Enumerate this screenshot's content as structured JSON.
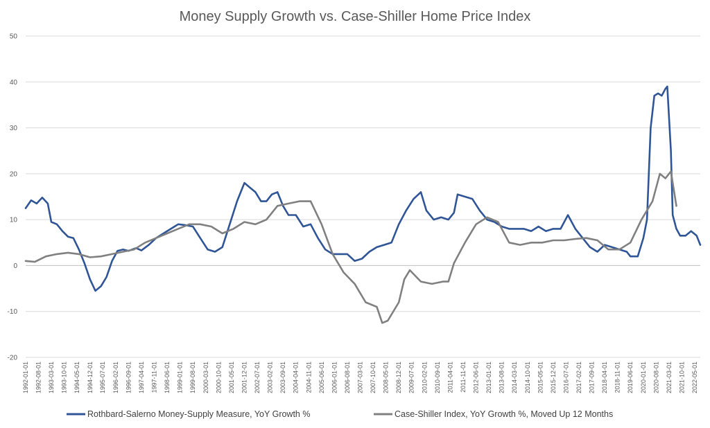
{
  "chart_data": {
    "type": "line",
    "title": "Money Supply Growth vs. Case-Shiller Home Price Index",
    "xlabel": "",
    "ylabel": "",
    "ylim": [
      -20,
      50
    ],
    "yticks": [
      50,
      40,
      30,
      20,
      10,
      0,
      -10,
      -20
    ],
    "grid": true,
    "legend_position": "bottom",
    "x_start": "1992-01-01",
    "x_end": "2022-08-01",
    "x_tick_labels": [
      "1992-01-01",
      "1992-08-01",
      "1993-03-01",
      "1993-10-01",
      "1994-05-01",
      "1994-12-01",
      "1995-07-01",
      "1996-02-01",
      "1996-09-01",
      "1997-04-01",
      "1997-11-01",
      "1998-06-01",
      "1999-01-01",
      "1999-08-01",
      "2000-03-01",
      "2000-10-01",
      "2001-05-01",
      "2001-12-01",
      "2002-07-01",
      "2003-02-01",
      "2003-09-01",
      "2004-04-01",
      "2004-11-01",
      "2005-06-01",
      "2006-01-01",
      "2006-08-01",
      "2007-03-01",
      "2007-10-01",
      "2008-05-01",
      "2008-12-01",
      "2009-07-01",
      "2010-02-01",
      "2010-09-01",
      "2011-04-01",
      "2011-11-01",
      "2012-06-01",
      "2013-01-01",
      "2013-08-01",
      "2014-03-01",
      "2014-10-01",
      "2015-05-01",
      "2015-12-01",
      "2016-07-01",
      "2017-02-01",
      "2017-09-01",
      "2018-04-01",
      "2018-11-01",
      "2019-06-01",
      "2020-01-01",
      "2020-08-01",
      "2021-03-01",
      "2021-10-01",
      "2022-05-01"
    ],
    "series": [
      {
        "name": "Rothbard-Salerno Money-Supply Measure, YoY Growth %",
        "color": "#2f5597",
        "points": [
          [
            "1992-01-01",
            12.5
          ],
          [
            "1992-04-01",
            14.2
          ],
          [
            "1992-07-01",
            13.5
          ],
          [
            "1992-10-01",
            14.8
          ],
          [
            "1993-01-01",
            13.5
          ],
          [
            "1993-03-01",
            9.5
          ],
          [
            "1993-06-01",
            9.0
          ],
          [
            "1993-09-01",
            7.5
          ],
          [
            "1993-12-01",
            6.3
          ],
          [
            "1994-03-01",
            6.0
          ],
          [
            "1994-06-01",
            3.5
          ],
          [
            "1994-09-01",
            0.5
          ],
          [
            "1994-12-01",
            -3.0
          ],
          [
            "1995-03-01",
            -5.5
          ],
          [
            "1995-06-01",
            -4.5
          ],
          [
            "1995-09-01",
            -2.5
          ],
          [
            "1995-12-01",
            1.0
          ],
          [
            "1996-03-01",
            3.2
          ],
          [
            "1996-06-01",
            3.5
          ],
          [
            "1996-09-01",
            3.2
          ],
          [
            "1997-01-01",
            3.8
          ],
          [
            "1997-04-01",
            3.3
          ],
          [
            "1997-08-01",
            4.5
          ],
          [
            "1997-12-01",
            6.0
          ],
          [
            "1998-04-01",
            7.0
          ],
          [
            "1998-08-01",
            8.0
          ],
          [
            "1998-12-01",
            9.0
          ],
          [
            "1999-04-01",
            8.8
          ],
          [
            "1999-08-01",
            8.5
          ],
          [
            "1999-12-01",
            6.0
          ],
          [
            "2000-04-01",
            3.5
          ],
          [
            "2000-08-01",
            3.0
          ],
          [
            "2000-12-01",
            4.0
          ],
          [
            "2001-04-01",
            9.0
          ],
          [
            "2001-08-01",
            14.0
          ],
          [
            "2001-12-01",
            18.0
          ],
          [
            "2002-03-01",
            17.0
          ],
          [
            "2002-06-01",
            16.0
          ],
          [
            "2002-09-01",
            14.0
          ],
          [
            "2002-12-01",
            14.0
          ],
          [
            "2003-03-01",
            15.5
          ],
          [
            "2003-06-01",
            16.0
          ],
          [
            "2003-09-01",
            13.0
          ],
          [
            "2003-12-01",
            11.0
          ],
          [
            "2004-04-01",
            11.0
          ],
          [
            "2004-08-01",
            8.5
          ],
          [
            "2004-12-01",
            9.0
          ],
          [
            "2005-04-01",
            6.0
          ],
          [
            "2005-08-01",
            3.5
          ],
          [
            "2005-12-01",
            2.5
          ],
          [
            "2006-04-01",
            2.5
          ],
          [
            "2006-08-01",
            2.5
          ],
          [
            "2006-12-01",
            1.0
          ],
          [
            "2007-04-01",
            1.5
          ],
          [
            "2007-08-01",
            3.0
          ],
          [
            "2007-12-01",
            4.0
          ],
          [
            "2008-04-01",
            4.5
          ],
          [
            "2008-08-01",
            5.0
          ],
          [
            "2008-12-01",
            9.0
          ],
          [
            "2009-04-01",
            12.0
          ],
          [
            "2009-08-01",
            14.5
          ],
          [
            "2009-12-01",
            16.0
          ],
          [
            "2010-03-01",
            12.0
          ],
          [
            "2010-07-01",
            10.0
          ],
          [
            "2010-11-01",
            10.5
          ],
          [
            "2011-03-01",
            10.0
          ],
          [
            "2011-06-01",
            11.5
          ],
          [
            "2011-08-01",
            15.5
          ],
          [
            "2011-12-01",
            15.0
          ],
          [
            "2012-04-01",
            14.5
          ],
          [
            "2012-08-01",
            12.0
          ],
          [
            "2012-12-01",
            10.0
          ],
          [
            "2013-04-01",
            9.5
          ],
          [
            "2013-08-01",
            8.5
          ],
          [
            "2013-12-01",
            8.0
          ],
          [
            "2014-04-01",
            8.0
          ],
          [
            "2014-08-01",
            8.0
          ],
          [
            "2014-12-01",
            7.5
          ],
          [
            "2015-04-01",
            8.5
          ],
          [
            "2015-08-01",
            7.5
          ],
          [
            "2015-12-01",
            8.0
          ],
          [
            "2016-04-01",
            8.0
          ],
          [
            "2016-08-01",
            11.0
          ],
          [
            "2016-12-01",
            8.0
          ],
          [
            "2017-04-01",
            6.0
          ],
          [
            "2017-08-01",
            4.0
          ],
          [
            "2017-12-01",
            3.0
          ],
          [
            "2018-04-01",
            4.5
          ],
          [
            "2018-08-01",
            4.0
          ],
          [
            "2018-12-01",
            3.5
          ],
          [
            "2019-04-01",
            3.0
          ],
          [
            "2019-06-01",
            2.0
          ],
          [
            "2019-10-01",
            2.0
          ],
          [
            "2020-01-01",
            6.0
          ],
          [
            "2020-03-01",
            10.0
          ],
          [
            "2020-05-01",
            30.0
          ],
          [
            "2020-07-01",
            37.0
          ],
          [
            "2020-09-01",
            37.5
          ],
          [
            "2020-11-01",
            37.0
          ],
          [
            "2021-01-01",
            38.5
          ],
          [
            "2021-02-01",
            39.0
          ],
          [
            "2021-04-01",
            25.0
          ],
          [
            "2021-05-01",
            11.0
          ],
          [
            "2021-07-01",
            8.0
          ],
          [
            "2021-09-01",
            6.5
          ],
          [
            "2021-12-01",
            6.5
          ],
          [
            "2022-03-01",
            7.5
          ],
          [
            "2022-06-01",
            6.5
          ],
          [
            "2022-08-01",
            4.5
          ]
        ]
      },
      {
        "name": "Case-Shiller Index, YoY Growth %, Moved Up 12 Months",
        "color": "#808080",
        "points": [
          [
            "1992-01-01",
            1.0
          ],
          [
            "1992-06-01",
            0.8
          ],
          [
            "1992-12-01",
            2.0
          ],
          [
            "1993-06-01",
            2.5
          ],
          [
            "1993-12-01",
            2.8
          ],
          [
            "1994-06-01",
            2.5
          ],
          [
            "1994-12-01",
            1.8
          ],
          [
            "1995-06-01",
            2.0
          ],
          [
            "1995-12-01",
            2.5
          ],
          [
            "1996-06-01",
            3.0
          ],
          [
            "1996-12-01",
            3.5
          ],
          [
            "1997-06-01",
            5.0
          ],
          [
            "1997-12-01",
            6.0
          ],
          [
            "1998-06-01",
            7.0
          ],
          [
            "1998-12-01",
            8.0
          ],
          [
            "1999-06-01",
            9.0
          ],
          [
            "1999-12-01",
            9.0
          ],
          [
            "2000-06-01",
            8.5
          ],
          [
            "2000-12-01",
            7.0
          ],
          [
            "2001-06-01",
            8.0
          ],
          [
            "2001-12-01",
            9.5
          ],
          [
            "2002-06-01",
            9.0
          ],
          [
            "2002-12-01",
            10.0
          ],
          [
            "2003-06-01",
            13.0
          ],
          [
            "2003-12-01",
            13.5
          ],
          [
            "2004-06-01",
            14.0
          ],
          [
            "2004-12-01",
            14.0
          ],
          [
            "2005-06-01",
            9.0
          ],
          [
            "2005-12-01",
            2.5
          ],
          [
            "2006-06-01",
            -1.5
          ],
          [
            "2006-12-01",
            -4.0
          ],
          [
            "2007-06-01",
            -8.0
          ],
          [
            "2007-12-01",
            -9.0
          ],
          [
            "2008-03-01",
            -12.5
          ],
          [
            "2008-06-01",
            -12.0
          ],
          [
            "2008-12-01",
            -8.0
          ],
          [
            "2009-03-01",
            -3.0
          ],
          [
            "2009-06-01",
            -1.0
          ],
          [
            "2009-12-01",
            -3.5
          ],
          [
            "2010-06-01",
            -4.0
          ],
          [
            "2010-12-01",
            -3.5
          ],
          [
            "2011-03-01",
            -3.5
          ],
          [
            "2011-06-01",
            0.5
          ],
          [
            "2011-12-01",
            5.0
          ],
          [
            "2012-06-01",
            9.0
          ],
          [
            "2012-12-01",
            10.5
          ],
          [
            "2013-06-01",
            9.5
          ],
          [
            "2013-12-01",
            5.0
          ],
          [
            "2014-06-01",
            4.5
          ],
          [
            "2014-12-01",
            5.0
          ],
          [
            "2015-06-01",
            5.0
          ],
          [
            "2015-12-01",
            5.5
          ],
          [
            "2016-06-01",
            5.5
          ],
          [
            "2016-12-01",
            5.8
          ],
          [
            "2017-06-01",
            6.0
          ],
          [
            "2017-12-01",
            5.5
          ],
          [
            "2018-06-01",
            3.5
          ],
          [
            "2018-12-01",
            3.5
          ],
          [
            "2019-06-01",
            5.0
          ],
          [
            "2019-12-01",
            10.0
          ],
          [
            "2020-06-01",
            14.0
          ],
          [
            "2020-10-01",
            20.0
          ],
          [
            "2021-01-01",
            19.0
          ],
          [
            "2021-04-01",
            20.5
          ],
          [
            "2021-07-01",
            13.0
          ]
        ]
      }
    ]
  }
}
